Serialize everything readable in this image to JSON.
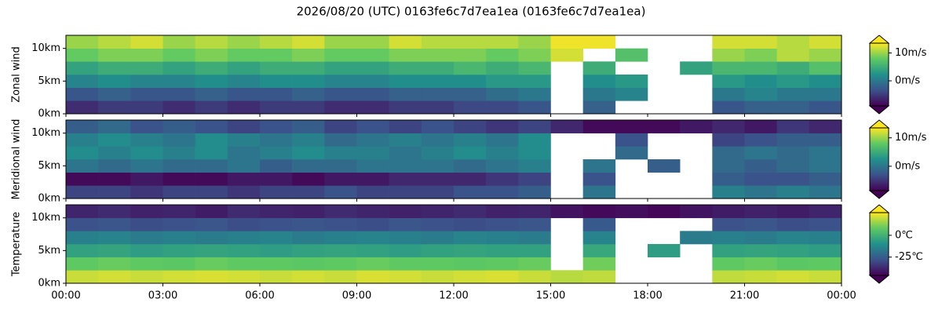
{
  "title": "2026/08/20 (UTC) 0163fe6c7d7ea1ea (0163fe6c7d7ea1ea)",
  "chart_data": [
    {
      "type": "heatmap",
      "ylabel": "Zonal wind",
      "colormap": "viridis",
      "x": [
        0.5,
        1.5,
        2.5,
        3.5,
        4.5,
        5.5,
        6.5,
        7.5,
        8.5,
        9.5,
        10.5,
        11.5,
        12.5,
        13.5,
        14.5,
        15.5,
        16.5,
        17.5,
        18.5,
        19.5,
        20.5,
        21.5,
        22.5,
        23.5
      ],
      "y": [
        1,
        3,
        5,
        7,
        9,
        11
      ],
      "values": [
        [
          -6,
          -5,
          -5,
          -6,
          -5,
          -6,
          -5,
          -5,
          -6,
          -6,
          -5,
          -5,
          -4,
          -4,
          -3,
          null,
          -2,
          null,
          null,
          null,
          -3,
          -2,
          -2,
          -3
        ],
        [
          -3,
          -2,
          -3,
          -3,
          -2,
          -3,
          -3,
          -2,
          -3,
          -3,
          -2,
          -2,
          -2,
          -1,
          0,
          null,
          0,
          1,
          null,
          null,
          0,
          1,
          0,
          0
        ],
        [
          1,
          2,
          1,
          1,
          2,
          1,
          2,
          2,
          1,
          1,
          2,
          2,
          2,
          3,
          3,
          null,
          2,
          3,
          null,
          null,
          3,
          2,
          3,
          2
        ],
        [
          4,
          5,
          5,
          4,
          5,
          4,
          5,
          5,
          4,
          4,
          5,
          5,
          6,
          5,
          6,
          null,
          5,
          null,
          null,
          4,
          6,
          6,
          5,
          7
        ],
        [
          8,
          9,
          9,
          8,
          9,
          8,
          8,
          9,
          8,
          8,
          9,
          9,
          9,
          8,
          9,
          12,
          null,
          7,
          null,
          null,
          10,
          9,
          11,
          10
        ],
        [
          10,
          11,
          12,
          10,
          11,
          10,
          11,
          12,
          10,
          10,
          12,
          11,
          11,
          11,
          10,
          13,
          13,
          null,
          null,
          null,
          12,
          12,
          11,
          12
        ]
      ],
      "ylim": [
        0,
        12
      ],
      "yticks": [
        {
          "value": 0,
          "label": "0km"
        },
        {
          "value": 5,
          "label": "5km"
        },
        {
          "value": 10,
          "label": "10km"
        }
      ],
      "clim": [
        -9,
        13.5
      ],
      "cticks": [
        {
          "value": 0,
          "label": "0m/s"
        },
        {
          "value": 10,
          "label": "10m/s"
        }
      ]
    },
    {
      "type": "heatmap",
      "ylabel": "Meridional wind",
      "colormap": "viridis",
      "x": [
        0.5,
        1.5,
        2.5,
        3.5,
        4.5,
        5.5,
        6.5,
        7.5,
        8.5,
        9.5,
        10.5,
        11.5,
        12.5,
        13.5,
        14.5,
        15.5,
        16.5,
        17.5,
        18.5,
        19.5,
        20.5,
        21.5,
        22.5,
        23.5
      ],
      "y": [
        1,
        3,
        5,
        7,
        9,
        11
      ],
      "values": [
        [
          -4,
          -4,
          -5,
          -4,
          -4,
          -5,
          -4,
          -4,
          -3,
          -4,
          -4,
          -4,
          -3,
          -3,
          -2,
          null,
          0,
          null,
          null,
          null,
          1,
          0,
          1,
          0
        ],
        [
          -8,
          -8,
          -7,
          -8,
          -8,
          -7,
          -7,
          -8,
          -7,
          -7,
          -6,
          -6,
          -6,
          -5,
          -4,
          null,
          -3,
          null,
          null,
          null,
          -2,
          -3,
          -3,
          -2
        ],
        [
          0,
          -1,
          0,
          -1,
          -1,
          0,
          -2,
          -1,
          -1,
          0,
          0,
          0,
          -1,
          0,
          1,
          null,
          0,
          null,
          -2,
          null,
          -1,
          -2,
          -1,
          0
        ],
        [
          2,
          1,
          2,
          1,
          2,
          0,
          1,
          2,
          1,
          1,
          0,
          1,
          2,
          1,
          2,
          null,
          null,
          -1,
          null,
          null,
          -1,
          0,
          -1,
          0
        ],
        [
          1,
          2,
          1,
          0,
          2,
          1,
          0,
          1,
          -1,
          0,
          1,
          0,
          1,
          0,
          2,
          null,
          null,
          -3,
          null,
          null,
          -4,
          -3,
          -2,
          -2
        ],
        [
          -2,
          -1,
          -3,
          -2,
          -3,
          -4,
          -3,
          -2,
          -4,
          -3,
          -4,
          -3,
          -4,
          -5,
          -4,
          -6,
          -8,
          -8,
          -8,
          -7,
          -6,
          -7,
          -5,
          -6
        ]
      ],
      "ylim": [
        0,
        12
      ],
      "yticks": [
        {
          "value": 0,
          "label": "0km"
        },
        {
          "value": 5,
          "label": "5km"
        },
        {
          "value": 10,
          "label": "10km"
        }
      ],
      "clim": [
        -8.6,
        13.5
      ],
      "cticks": [
        {
          "value": 0,
          "label": "0m/s"
        },
        {
          "value": 10,
          "label": "10m/s"
        }
      ]
    },
    {
      "type": "heatmap",
      "ylabel": "Temperature",
      "colormap": "viridis",
      "x": [
        0.5,
        1.5,
        2.5,
        3.5,
        4.5,
        5.5,
        6.5,
        7.5,
        8.5,
        9.5,
        10.5,
        11.5,
        12.5,
        13.5,
        14.5,
        15.5,
        16.5,
        17.5,
        18.5,
        19.5,
        20.5,
        21.5,
        22.5,
        23.5
      ],
      "y": [
        1,
        3,
        5,
        7,
        9,
        11
      ],
      "values": [
        [
          20,
          21,
          20,
          21,
          22,
          21,
          20,
          21,
          20,
          22,
          21,
          20,
          21,
          22,
          20,
          18,
          19,
          null,
          null,
          null,
          19,
          20,
          21,
          20
        ],
        [
          8,
          9,
          8,
          7,
          9,
          8,
          8,
          7,
          8,
          9,
          8,
          8,
          7,
          8,
          9,
          null,
          10,
          null,
          null,
          null,
          8,
          9,
          7,
          8
        ],
        [
          -5,
          -4,
          -6,
          -5,
          -4,
          -5,
          -6,
          -5,
          -4,
          -5,
          -6,
          -5,
          -4,
          -5,
          -5,
          null,
          -3,
          null,
          -6,
          null,
          -5,
          -4,
          -5,
          -6
        ],
        [
          -15,
          -14,
          -16,
          -15,
          -16,
          -15,
          -14,
          -16,
          -15,
          -14,
          -15,
          -16,
          -14,
          -15,
          -16,
          null,
          -14,
          null,
          null,
          -16,
          -15,
          -16,
          -14,
          -15
        ],
        [
          -28,
          -27,
          -29,
          -28,
          -27,
          -29,
          -28,
          -27,
          -28,
          -29,
          -27,
          -28,
          -29,
          -28,
          -27,
          null,
          -26,
          null,
          null,
          null,
          -28,
          -27,
          -29,
          -28
        ],
        [
          -38,
          -37,
          -39,
          -38,
          -40,
          -37,
          -38,
          -39,
          -37,
          -38,
          -39,
          -38,
          -37,
          -39,
          -38,
          -42,
          -44,
          -43,
          -45,
          -42,
          -40,
          -39,
          -40,
          -38
        ]
      ],
      "ylim": [
        0,
        12
      ],
      "yticks": [
        {
          "value": 0,
          "label": "0km"
        },
        {
          "value": 5,
          "label": "5km"
        },
        {
          "value": 10,
          "label": "10km"
        }
      ],
      "clim": [
        -46,
        26
      ],
      "cticks": [
        {
          "value": -25,
          "label": "-25℃"
        },
        {
          "value": 0,
          "label": "0℃"
        }
      ],
      "xlim": [
        0,
        24
      ],
      "xticks": [
        {
          "value": 0,
          "label": "00:00"
        },
        {
          "value": 3,
          "label": "03:00"
        },
        {
          "value": 6,
          "label": "06:00"
        },
        {
          "value": 9,
          "label": "09:00"
        },
        {
          "value": 12,
          "label": "12:00"
        },
        {
          "value": 15,
          "label": "15:00"
        },
        {
          "value": 18,
          "label": "18:00"
        },
        {
          "value": 21,
          "label": "21:00"
        },
        {
          "value": 24,
          "label": "00:00"
        }
      ]
    }
  ]
}
